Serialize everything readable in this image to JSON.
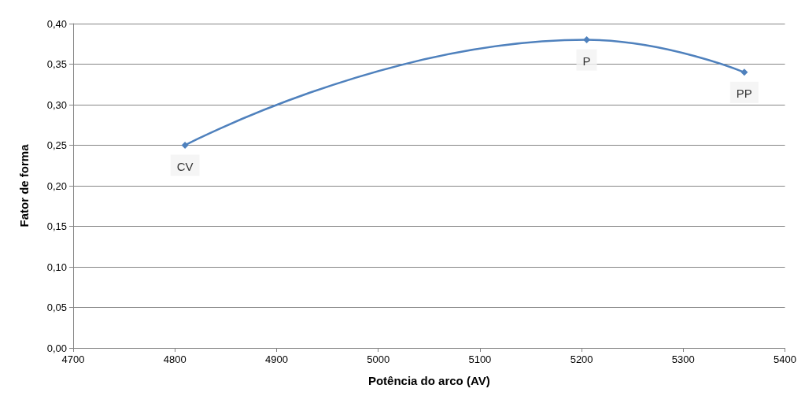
{
  "chart_data": {
    "type": "line",
    "xlabel": "Potência do arco (AV)",
    "ylabel": "Fator de forma",
    "x": [
      4810,
      5205,
      5360
    ],
    "series": [
      {
        "color": "#4f81bd",
        "values": [
          0.25,
          0.38,
          0.34
        ]
      }
    ],
    "xlim": [
      4700,
      5400
    ],
    "xticks": [
      4700,
      4800,
      4900,
      5000,
      5100,
      5200,
      5300,
      5400
    ],
    "ylim": [
      0,
      0.4
    ],
    "yticks": [
      {
        "value": 0,
        "label": "0,00"
      },
      {
        "value": 0.05,
        "label": "0,05"
      },
      {
        "value": 0.1,
        "label": "0,10"
      },
      {
        "value": 0.15,
        "label": "0,15"
      },
      {
        "value": 0.2,
        "label": "0,20"
      },
      {
        "value": 0.25,
        "label": "0,25"
      },
      {
        "value": 0.3,
        "label": "0,30"
      },
      {
        "value": 0.35,
        "label": "0,35"
      },
      {
        "value": 0.4,
        "label": "0,40"
      }
    ],
    "annotations": [
      {
        "text": "CV",
        "x": 4810,
        "y": 0.25
      },
      {
        "text": "P",
        "x": 5205,
        "y": 0.38
      },
      {
        "text": "PP",
        "x": 5360,
        "y": 0.34
      }
    ],
    "grid": "y",
    "marker": "diamond",
    "line_style": "solid"
  }
}
